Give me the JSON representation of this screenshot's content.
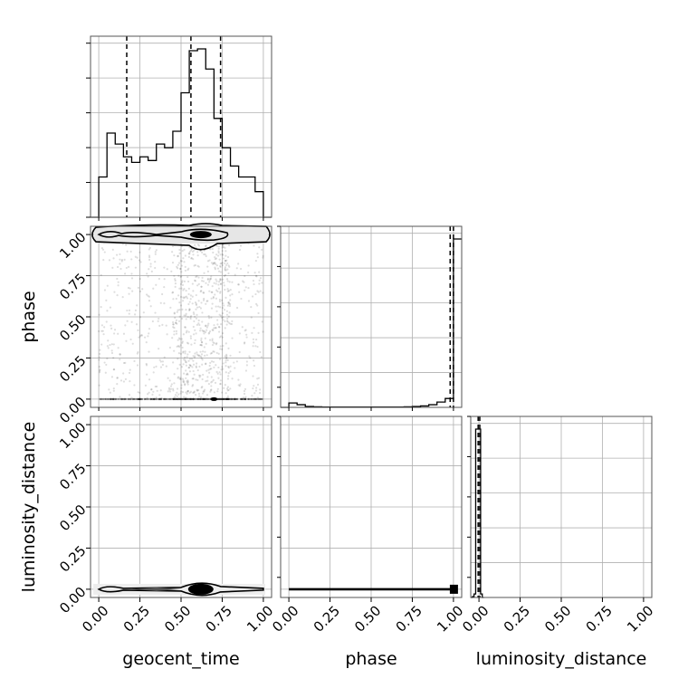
{
  "chart_data": {
    "type": "corner",
    "parameters": [
      "geocent_time",
      "phase",
      "luminosity_distance"
    ],
    "tick_values": [
      0.0,
      0.25,
      0.5,
      0.75,
      1.0
    ],
    "tick_labels": [
      "0.00",
      "0.25",
      "0.50",
      "0.75",
      "1.00"
    ],
    "axis_range": [
      -0.05,
      1.05
    ],
    "grid": true,
    "histograms": [
      {
        "parameter": "geocent_time",
        "bin_edges": [
          -0.05,
          0.0,
          0.05,
          0.1,
          0.15,
          0.2,
          0.25,
          0.3,
          0.35,
          0.4,
          0.45,
          0.5,
          0.55,
          0.6,
          0.65,
          0.7,
          0.75,
          0.8,
          0.85,
          0.9,
          0.95,
          1.0,
          1.05
        ],
        "counts": [
          0,
          0.22,
          0.46,
          0.4,
          0.33,
          0.3,
          0.33,
          0.31,
          0.4,
          0.38,
          0.47,
          0.68,
          0.91,
          0.92,
          0.81,
          0.54,
          0.38,
          0.28,
          0.22,
          0.22,
          0.14,
          0
        ],
        "quantiles": [
          0.17,
          0.56,
          0.74
        ]
      },
      {
        "parameter": "phase",
        "bin_edges": [
          -0.05,
          0.0,
          0.05,
          0.1,
          0.15,
          0.2,
          0.25,
          0.3,
          0.35,
          0.4,
          0.45,
          0.5,
          0.55,
          0.6,
          0.65,
          0.7,
          0.75,
          0.8,
          0.85,
          0.9,
          0.95,
          1.0,
          1.05
        ],
        "counts": [
          0,
          0.025,
          0.015,
          0.005,
          0.003,
          0.002,
          0.002,
          0.002,
          0.002,
          0.002,
          0.002,
          0.002,
          0.002,
          0.002,
          0.002,
          0.003,
          0.005,
          0.008,
          0.015,
          0.03,
          0.05,
          0.95
        ],
        "quantiles": [
          0.98,
          1.0
        ]
      },
      {
        "parameter": "luminosity_distance",
        "bin_edges": [
          -0.05,
          -0.04,
          -0.03,
          -0.02,
          -0.01,
          0.0,
          0.01,
          0.02,
          0.03
        ],
        "counts": [
          0,
          0.005,
          0.02,
          0.96,
          0.96,
          0.96,
          0.02,
          0
        ],
        "quantiles": [
          -0.005,
          0.005
        ]
      }
    ],
    "pairs": [
      {
        "x": "geocent_time",
        "y": "phase",
        "mode_y": 1.0
      },
      {
        "x": "geocent_time",
        "y": "luminosity_distance",
        "mode_y": 0.0
      },
      {
        "x": "phase",
        "y": "luminosity_distance",
        "mode_y": 0.0
      }
    ]
  }
}
